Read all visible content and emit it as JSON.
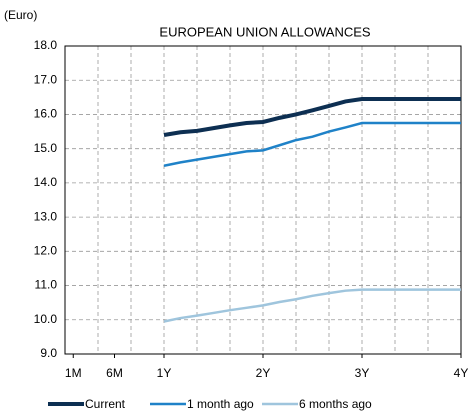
{
  "chart_data": {
    "type": "line",
    "title": "EUROPEAN UNION ALLOWANCES",
    "y_label": "(Euro)",
    "x": [
      12,
      14,
      16,
      18,
      20,
      22,
      24,
      26,
      28,
      30,
      32,
      34,
      36,
      48
    ],
    "series": [
      {
        "name": "Current",
        "color": "#0d2f52",
        "values": [
          15.4,
          15.48,
          15.52,
          15.6,
          15.68,
          15.75,
          15.78,
          15.9,
          16.0,
          16.12,
          16.25,
          16.38,
          16.45,
          16.45
        ]
      },
      {
        "name": "1 month ago",
        "color": "#1f82c8",
        "values": [
          14.5,
          14.6,
          14.68,
          14.76,
          14.84,
          14.92,
          14.95,
          15.1,
          15.25,
          15.35,
          15.5,
          15.62,
          15.75,
          15.75
        ]
      },
      {
        "name": "6 months ago",
        "color": "#9fc5dd",
        "values": [
          9.95,
          10.05,
          10.12,
          10.2,
          10.28,
          10.35,
          10.42,
          10.52,
          10.6,
          10.7,
          10.78,
          10.85,
          10.88,
          10.88
        ]
      }
    ],
    "xlim": [
      0,
      48
    ],
    "xticks": [
      {
        "value": 1,
        "label": "1M"
      },
      {
        "value": 6,
        "label": "6M"
      },
      {
        "value": 12,
        "label": "1Y"
      },
      {
        "value": 24,
        "label": "2Y"
      },
      {
        "value": 36,
        "label": "3Y"
      },
      {
        "value": 48,
        "label": "4Y"
      }
    ],
    "xgrid": [
      4,
      8,
      12,
      16,
      20,
      24,
      28,
      32,
      36,
      40,
      44
    ],
    "ylim": [
      9,
      18
    ],
    "yticks": [
      {
        "value": 9,
        "label": "9.0"
      },
      {
        "value": 10,
        "label": "10.0"
      },
      {
        "value": 11,
        "label": "11.0"
      },
      {
        "value": 12,
        "label": "12.0"
      },
      {
        "value": 13,
        "label": "13.0"
      },
      {
        "value": 14,
        "label": "14.0"
      },
      {
        "value": 15,
        "label": "15.0"
      },
      {
        "value": 16,
        "label": "16.0"
      },
      {
        "value": 17,
        "label": "17.0"
      },
      {
        "value": 18,
        "label": "18.0"
      }
    ],
    "grid": true,
    "legend": "bottom"
  }
}
